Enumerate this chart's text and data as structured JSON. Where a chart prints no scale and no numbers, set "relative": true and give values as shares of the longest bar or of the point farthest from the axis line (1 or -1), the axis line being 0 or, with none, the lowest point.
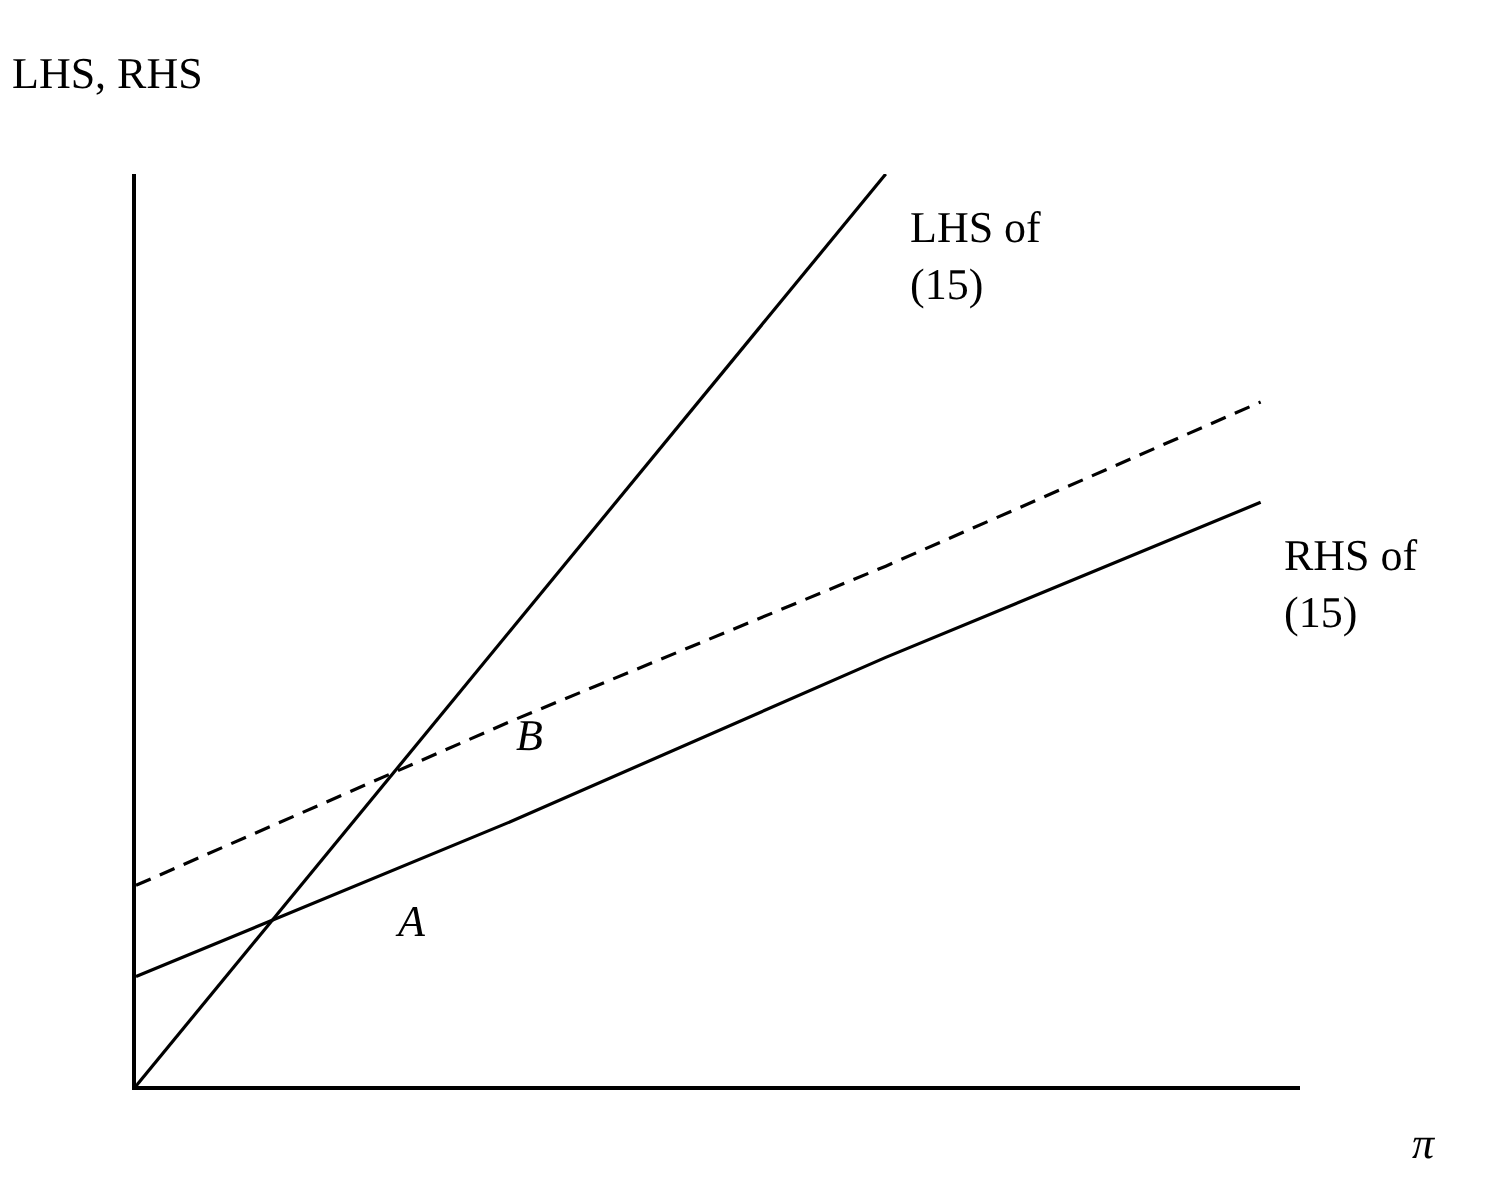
{
  "chart_data": {
    "type": "line",
    "relative": true,
    "ylabel": "LHS, RHS",
    "xlabel": "π",
    "legend": false,
    "marker": "none",
    "categories": [
      null,
      null,
      null,
      null
    ],
    "series": [
      {
        "name": "LHS of (15)",
        "color": "#000000",
        "line_style": "solid",
        "values": [
          0,
          0.5,
          1,
          null
        ]
      },
      {
        "name": "RHS of (15)",
        "color": "#000000",
        "line_style": "solid",
        "values": [
          0.12,
          0.29,
          0.47,
          0.64
        ]
      },
      {
        "color": "#000000",
        "line_style": "dashed",
        "values": [
          0.22,
          0.4,
          0.57,
          0.75
        ]
      }
    ],
    "annotations": [
      "A",
      "B"
    ]
  }
}
